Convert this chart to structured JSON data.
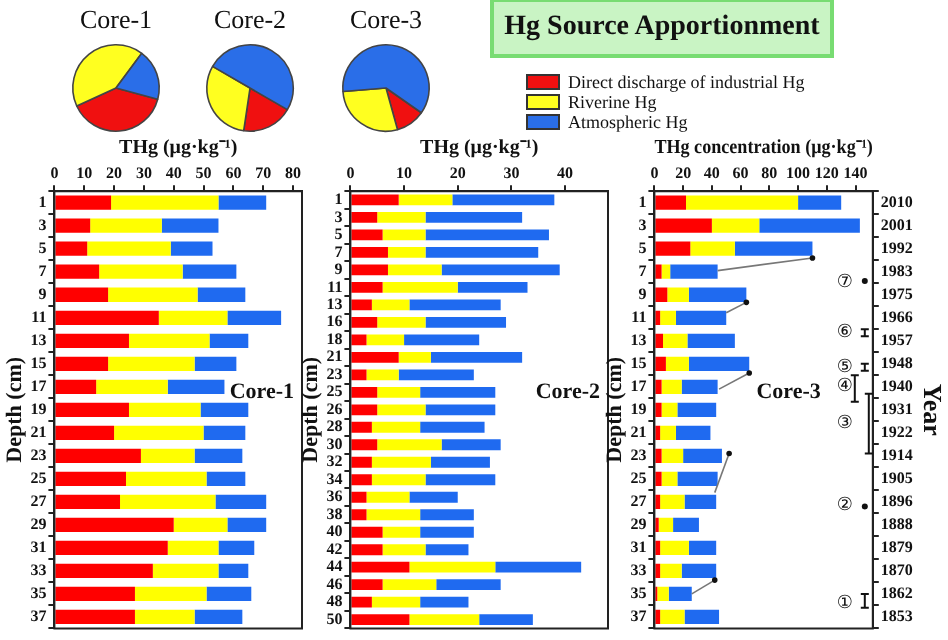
{
  "chart_data": [
    {
      "type": "pie",
      "title": "Core-1",
      "categories": [
        null,
        null,
        null
      ],
      "values": [
        39,
        42,
        19
      ],
      "colors": [
        "#f01010",
        "#ffff20",
        "#2a6ee8"
      ]
    },
    {
      "type": "pie",
      "title": "Core-2",
      "categories": [
        null,
        null,
        null
      ],
      "values": [
        19,
        31,
        50
      ],
      "colors": [
        "#f01010",
        "#ffff20",
        "#2a6ee8"
      ]
    },
    {
      "type": "pie",
      "title": "Core-3",
      "categories": [
        "Direct discharge of industrial Hg",
        "Riverine Hg",
        "Atmospheric Hg"
      ],
      "values": [
        11,
        28,
        61
      ],
      "colors": [
        "#f01010",
        "#ffff20",
        "#2a6ee8"
      ],
      "legend": "right"
    },
    {
      "type": "other",
      "title": "Hg Source Apportionment"
    },
    {
      "type": "bar",
      "orientation": "horizontal",
      "stacked": true,
      "xlabel": "THg (μg·kg⁻¹)",
      "ylabel": "Depth (cm)",
      "categories": [
        "1",
        "3",
        "5",
        "7",
        "9",
        "11",
        "13",
        "15",
        "17",
        "19",
        "21",
        "23",
        "25",
        "27",
        "29",
        "31",
        "33",
        "35",
        "37"
      ],
      "xlim": [
        0,
        83
      ],
      "xticks": [
        0,
        10,
        20,
        30,
        40,
        50,
        60,
        70,
        80
      ],
      "annotations": [
        "Core-1"
      ],
      "series": [
        {
          "color": "#ff0000",
          "values": [
            19,
            12,
            11,
            15,
            18,
            35,
            25,
            18,
            14,
            25,
            20,
            29,
            24,
            22,
            40,
            38,
            33,
            27,
            27
          ]
        },
        {
          "color": "#ffff00",
          "values": [
            36,
            24,
            28,
            28,
            30,
            23,
            27,
            29,
            24,
            24,
            30,
            18,
            27,
            32,
            18,
            17,
            22,
            24,
            20
          ]
        },
        {
          "color": "#1f6af0",
          "values": [
            16,
            19,
            14,
            18,
            16,
            18,
            13,
            14,
            19,
            16,
            14,
            16,
            13,
            17,
            13,
            12,
            10,
            15,
            16
          ]
        }
      ]
    },
    {
      "type": "bar",
      "orientation": "horizontal",
      "stacked": true,
      "xlabel": "THg (μg·kg⁻¹)",
      "ylabel": "Depth (cm)",
      "categories": [
        "1",
        "3",
        "5",
        "7",
        "9",
        "11",
        "13",
        "16",
        "18",
        "21",
        "23",
        "25",
        "26",
        "28",
        "30",
        "32",
        "34",
        "36",
        "38",
        "40",
        "42",
        "44",
        "46",
        "48",
        "50"
      ],
      "xlim": [
        0,
        48
      ],
      "xticks": [
        0,
        10,
        20,
        30,
        40
      ],
      "annotations": [
        "Core-2"
      ],
      "series": [
        {
          "color": "#ff0000",
          "values": [
            9,
            5,
            6,
            7,
            7,
            6,
            4,
            5,
            3,
            9,
            3,
            5,
            5,
            4,
            5,
            4,
            4,
            3,
            3,
            6,
            6,
            11,
            6,
            4,
            11
          ]
        },
        {
          "color": "#ffff00",
          "values": [
            10,
            9,
            8,
            7,
            10,
            14,
            7,
            9,
            7,
            6,
            6,
            8,
            9,
            9,
            12,
            11,
            10,
            8,
            10,
            7,
            8,
            16,
            10,
            9,
            13
          ]
        },
        {
          "color": "#1f6af0",
          "values": [
            19,
            18,
            23,
            21,
            22,
            13,
            17,
            15,
            14,
            17,
            14,
            14,
            13,
            12,
            11,
            11,
            13,
            9,
            10,
            10,
            8,
            16,
            12,
            9,
            10
          ]
        }
      ]
    },
    {
      "type": "bar",
      "orientation": "horizontal",
      "stacked": true,
      "xlabel": "THg concentration (μg·kg⁻¹)",
      "ylabel": "Depth (cm)",
      "y2label": "Year",
      "categories": [
        "1",
        "3",
        "5",
        "7",
        "9",
        "11",
        "13",
        "15",
        "17",
        "19",
        "21",
        "23",
        "25",
        "27",
        "29",
        "31",
        "33",
        "35",
        "37"
      ],
      "y2_categories": [
        "2010",
        "2001",
        "1992",
        "1983",
        "1975",
        "1966",
        "1957",
        "1948",
        "1940",
        "1931",
        "1922",
        "1914",
        "1905",
        "1896",
        "1888",
        "1879",
        "1870",
        "1862",
        "1853"
      ],
      "xlim": [
        0,
        152
      ],
      "xticks": [
        0,
        20,
        40,
        60,
        80,
        100,
        120,
        140
      ],
      "annotations": [
        "Core-3",
        "⑦",
        "⑥",
        "⑤",
        "④",
        "③",
        "②",
        "①"
      ],
      "series": [
        {
          "color": "#ff0000",
          "values": [
            22,
            40,
            25,
            5,
            9,
            4,
            6,
            8,
            5,
            5,
            4,
            5,
            5,
            4,
            3,
            4,
            4,
            2,
            4
          ]
        },
        {
          "color": "#ffff00",
          "values": [
            78,
            33,
            31,
            6,
            15,
            11,
            17,
            16,
            14,
            11,
            11,
            15,
            11,
            17,
            10,
            20,
            15,
            8,
            17
          ]
        },
        {
          "color": "#1f6af0",
          "values": [
            30,
            70,
            54,
            33,
            40,
            35,
            33,
            42,
            25,
            27,
            24,
            27,
            28,
            22,
            18,
            19,
            24,
            16,
            24
          ]
        }
      ]
    }
  ]
}
